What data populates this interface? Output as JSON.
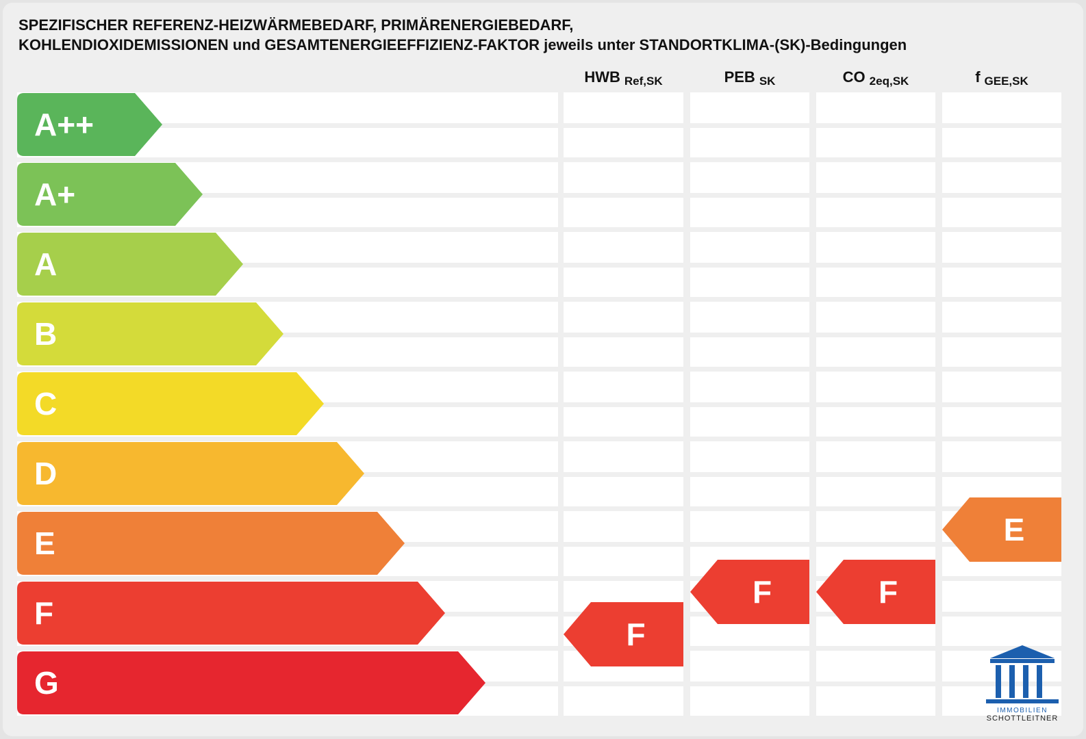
{
  "title": [
    "SPEZIFISCHER REFERENZ-HEIZWÄRMEBEDARF, PRIMÄRENERGIEBEDARF,",
    "KOHLENDIOXIDEMISSIONEN und GESAMTENERGIEEFFIZIENZ-FAKTOR jeweils unter STANDORTKLIMA-(SK)-Bedingungen"
  ],
  "columns": [
    {
      "main": "HWB",
      "sub": "Ref,SK"
    },
    {
      "main": "PEB",
      "sub": "SK"
    },
    {
      "main": "CO",
      "sub": "2eq,SK"
    },
    {
      "main": "f",
      "sub": "GEE,SK"
    }
  ],
  "classes": [
    "A++",
    "A+",
    "A",
    "B",
    "C",
    "D",
    "E",
    "F",
    "G"
  ],
  "ratings": [
    "F",
    "F",
    "F",
    "E"
  ],
  "logo": [
    "IMMOBILIEN",
    "SCHOTTLEITNER"
  ]
}
